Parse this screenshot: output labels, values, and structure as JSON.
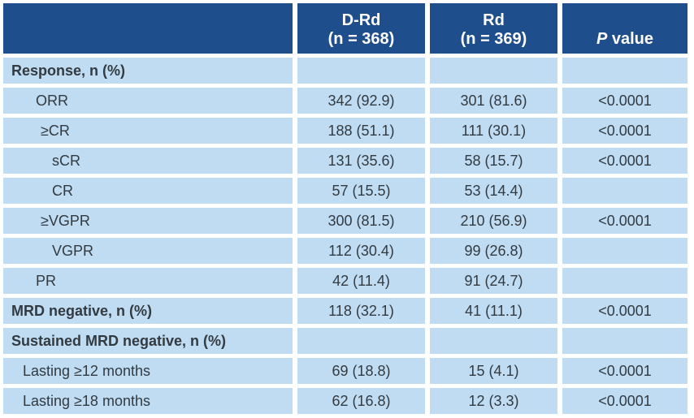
{
  "table": {
    "headers": {
      "col1_line1": "D-Rd",
      "col1_line2": "(n = 368)",
      "col2_line1": "Rd",
      "col2_line2": "(n = 369)",
      "col3_italic": "P",
      "col3_rest": " value"
    },
    "rows": [
      {
        "label": "Response, n (%)",
        "drd": "",
        "rd": "",
        "p": ""
      },
      {
        "label": "ORR",
        "drd": "342 (92.9)",
        "rd": "301 (81.6)",
        "p": "<0.0001"
      },
      {
        "label": "≥CR",
        "drd": "188 (51.1)",
        "rd": "111 (30.1)",
        "p": "<0.0001"
      },
      {
        "label": "sCR",
        "drd": "131 (35.6)",
        "rd": "58 (15.7)",
        "p": "<0.0001"
      },
      {
        "label": "CR",
        "drd": "57 (15.5)",
        "rd": "53 (14.4)",
        "p": ""
      },
      {
        "label": "≥VGPR",
        "drd": "300 (81.5)",
        "rd": "210 (56.9)",
        "p": "<0.0001"
      },
      {
        "label": "VGPR",
        "drd": "112 (30.4)",
        "rd": "99 (26.8)",
        "p": ""
      },
      {
        "label": "PR",
        "drd": "42 (11.4)",
        "rd": "91 (24.7)",
        "p": ""
      },
      {
        "label": "MRD negative, n (%)",
        "drd": "118 (32.1)",
        "rd": "41 (11.1)",
        "p": "<0.0001"
      },
      {
        "label": "Sustained MRD negative, n (%)",
        "drd": "",
        "rd": "",
        "p": ""
      },
      {
        "label": "Lasting ≥12 months",
        "drd": "69 (18.8)",
        "rd": "15 (4.1)",
        "p": "<0.0001"
      },
      {
        "label": "Lasting ≥18 months",
        "drd": "62 (16.8)",
        "rd": "12 (3.3)",
        "p": "<0.0001"
      }
    ]
  },
  "colors": {
    "header_bg": "#1f4e8c",
    "cell_bg": "#bfdcf2",
    "text": "#333a40"
  }
}
